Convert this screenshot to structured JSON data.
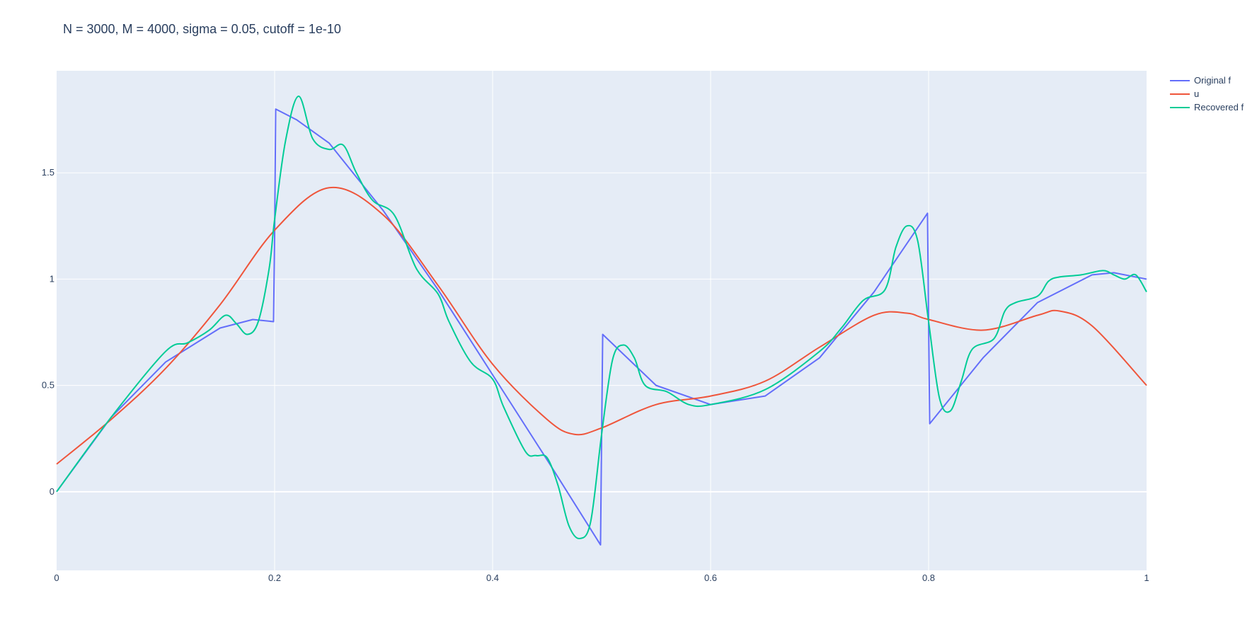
{
  "chart_data": {
    "type": "line",
    "title": "N = 3000, M = 4000, sigma = 0.05, cutoff = 1e-10",
    "xlabel": "",
    "ylabel": "",
    "xlim": [
      0,
      1
    ],
    "ylim": [
      -0.37,
      1.98
    ],
    "xticks": [
      "0",
      "0.2",
      "0.4",
      "0.6",
      "0.8",
      "1"
    ],
    "yticks": [
      "0",
      "0.5",
      "1",
      "1.5"
    ],
    "grid": true,
    "legend_position": "top-right-outside",
    "series": [
      {
        "name": "Original f",
        "color": "#636efa",
        "x": [
          0,
          0.05,
          0.1,
          0.15,
          0.18,
          0.199,
          0.2,
          0.201,
          0.22,
          0.25,
          0.3,
          0.35,
          0.4,
          0.45,
          0.499,
          0.5,
          0.501,
          0.55,
          0.6,
          0.65,
          0.7,
          0.75,
          0.799,
          0.8,
          0.801,
          0.85,
          0.9,
          0.95,
          0.97,
          1.0
        ],
        "y": [
          0,
          0.35,
          0.61,
          0.77,
          0.81,
          0.8,
          1.2,
          1.8,
          1.75,
          1.64,
          1.32,
          0.95,
          0.55,
          0.15,
          -0.25,
          0.25,
          0.74,
          0.5,
          0.41,
          0.45,
          0.63,
          0.94,
          1.31,
          0.8,
          0.32,
          0.63,
          0.89,
          1.02,
          1.03,
          1.0
        ]
      },
      {
        "name": "u",
        "color": "#ef553b",
        "x": [
          0,
          0.05,
          0.1,
          0.15,
          0.2,
          0.25,
          0.3,
          0.35,
          0.4,
          0.45,
          0.475,
          0.5,
          0.55,
          0.6,
          0.65,
          0.7,
          0.75,
          0.78,
          0.8,
          0.85,
          0.9,
          0.92,
          0.95,
          1.0
        ],
        "y": [
          0.13,
          0.34,
          0.58,
          0.88,
          1.23,
          1.43,
          1.3,
          0.97,
          0.6,
          0.34,
          0.27,
          0.3,
          0.41,
          0.45,
          0.52,
          0.68,
          0.83,
          0.84,
          0.81,
          0.76,
          0.83,
          0.85,
          0.78,
          0.5
        ]
      },
      {
        "name": "Recovered f",
        "color": "#00cc96",
        "x": [
          0,
          0.05,
          0.1,
          0.12,
          0.14,
          0.155,
          0.165,
          0.175,
          0.185,
          0.195,
          0.2,
          0.21,
          0.222,
          0.235,
          0.25,
          0.263,
          0.275,
          0.29,
          0.31,
          0.33,
          0.35,
          0.36,
          0.38,
          0.4,
          0.41,
          0.43,
          0.44,
          0.45,
          0.46,
          0.47,
          0.48,
          0.49,
          0.5,
          0.51,
          0.52,
          0.53,
          0.54,
          0.56,
          0.58,
          0.6,
          0.65,
          0.7,
          0.72,
          0.74,
          0.76,
          0.77,
          0.78,
          0.79,
          0.8,
          0.81,
          0.82,
          0.83,
          0.84,
          0.86,
          0.87,
          0.88,
          0.9,
          0.91,
          0.92,
          0.94,
          0.96,
          0.97,
          0.98,
          0.99,
          1.0
        ],
        "y": [
          0,
          0.35,
          0.66,
          0.7,
          0.76,
          0.83,
          0.79,
          0.74,
          0.8,
          1.05,
          1.28,
          1.65,
          1.86,
          1.66,
          1.61,
          1.63,
          1.5,
          1.37,
          1.3,
          1.05,
          0.93,
          0.8,
          0.61,
          0.53,
          0.4,
          0.19,
          0.17,
          0.16,
          0.03,
          -0.16,
          -0.22,
          -0.14,
          0.27,
          0.62,
          0.69,
          0.63,
          0.5,
          0.47,
          0.41,
          0.41,
          0.48,
          0.66,
          0.77,
          0.9,
          0.95,
          1.15,
          1.25,
          1.18,
          0.8,
          0.44,
          0.38,
          0.52,
          0.67,
          0.72,
          0.85,
          0.89,
          0.92,
          0.99,
          1.01,
          1.02,
          1.04,
          1.02,
          1.0,
          1.02,
          0.94
        ]
      }
    ]
  }
}
